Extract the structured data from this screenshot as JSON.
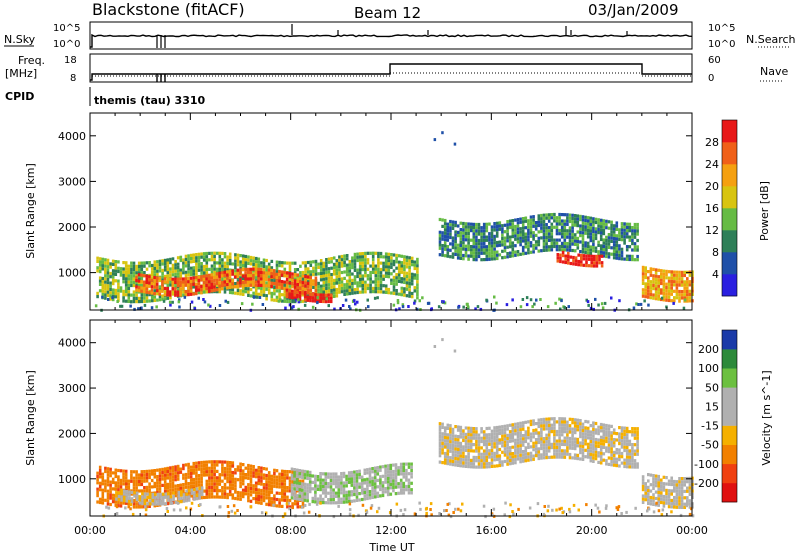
{
  "header": {
    "station": "Blackstone (fitACF)",
    "beam": "Beam 12",
    "date": "03/Jan/2009"
  },
  "aux_panels": {
    "nsky_label": "N.Sky",
    "nsky_ticks": [
      "10^5",
      "10^0"
    ],
    "nsearch_label": "N.Search",
    "nsearch_ticks": [
      "10^5",
      "10^0"
    ],
    "freq_label": "Freq.",
    "freq_unit": "[MHz]",
    "freq_ticks": [
      "18",
      "8"
    ],
    "nave_label": "Nave",
    "nave_ticks": [
      "60",
      "0"
    ],
    "cpid_label": "CPID",
    "cpid_value": "themis (tau) 3310"
  },
  "chart_data": [
    {
      "type": "heatmap",
      "panel": "power",
      "ylabel": "Slant Range [km]",
      "yticks": [
        "1000",
        "2000",
        "3000",
        "4000"
      ],
      "ylim": [
        180,
        4500
      ],
      "xlim": [
        0,
        24
      ],
      "colorbar": {
        "label": "Power [dB]",
        "ticks": [
          "4",
          "8",
          "12",
          "16",
          "20",
          "24",
          "28"
        ],
        "colors": [
          "#2a1fe0",
          "#1f50a8",
          "#2e7f58",
          "#66bb44",
          "#d8c410",
          "#f5a010",
          "#f06018",
          "#e81818"
        ]
      },
      "regions": [
        {
          "t0": 0.25,
          "t1": 13.0,
          "r0": 500,
          "r1": 1350,
          "level": 3
        },
        {
          "t0": 1.8,
          "t1": 9.0,
          "r0": 620,
          "r1": 1000,
          "level": 6
        },
        {
          "t0": 7.8,
          "t1": 9.6,
          "r0": 500,
          "r1": 650,
          "level": 7
        },
        {
          "t0": 13.9,
          "t1": 21.8,
          "r0": 1400,
          "r1": 2200,
          "level": 2
        },
        {
          "t0": 18.6,
          "t1": 20.4,
          "r0": 1250,
          "r1": 1500,
          "level": 7
        },
        {
          "t0": 22.0,
          "t1": 24.0,
          "r0": 500,
          "r1": 1150,
          "level": 5
        }
      ]
    },
    {
      "type": "heatmap",
      "panel": "velocity",
      "ylabel": "Slant Range [km]",
      "yticks": [
        "1000",
        "2000",
        "3000",
        "4000"
      ],
      "ylim": [
        180,
        4500
      ],
      "xlim": [
        0,
        24
      ],
      "xticks": [
        "00:00",
        "04:00",
        "08:00",
        "12:00",
        "16:00",
        "20:00",
        "00:00"
      ],
      "xlabel": "Time UT",
      "colorbar": {
        "label": "Velocity [m s^-1]",
        "ticks": [
          "200",
          "100",
          "50",
          "15",
          "-15",
          "-50",
          "-100",
          "-200"
        ],
        "colors": [
          "#1a3aa8",
          "#2d8a3a",
          "#6cc040",
          "#b0b0b0",
          "#b0b0b0",
          "#f5b000",
          "#f28000",
          "#f04010",
          "#e01010"
        ]
      },
      "regions": [
        {
          "t0": 0.25,
          "t1": 8.5,
          "r0": 500,
          "r1": 1300,
          "vel": -80
        },
        {
          "t0": 1.0,
          "t1": 4.5,
          "r0": 550,
          "r1": 800,
          "vel": 0
        },
        {
          "t0": 8.0,
          "t1": 12.8,
          "r0": 550,
          "r1": 1250,
          "vel": 40
        },
        {
          "t0": 13.9,
          "t1": 21.8,
          "r0": 1350,
          "r1": 2250,
          "vel": 0
        },
        {
          "t0": 22.0,
          "t1": 24.0,
          "r0": 500,
          "r1": 1150,
          "vel": 0
        }
      ]
    }
  ]
}
